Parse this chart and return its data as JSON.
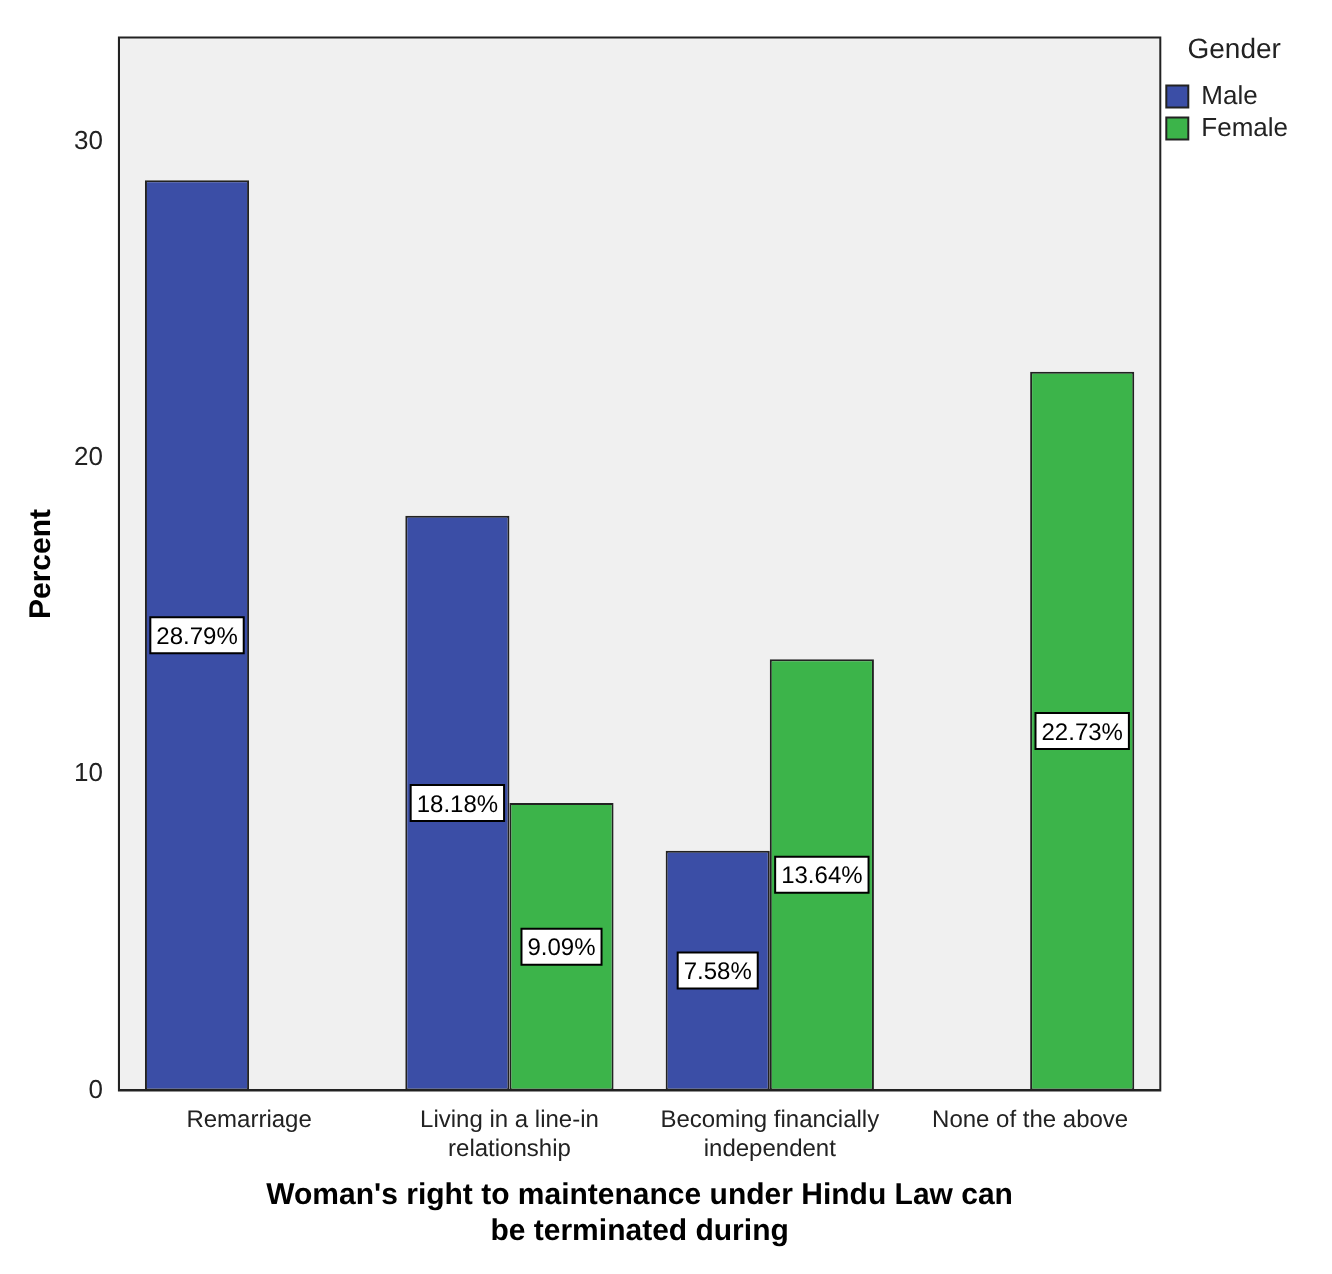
{
  "chart_data": {
    "type": "bar",
    "xlabel": "Woman's right to maintenance under Hindu Law can be terminated during",
    "ylabel": "Percent",
    "legend_title": "Gender",
    "legend": "top right",
    "categories": [
      "Remarriage",
      "Living in a line-in relationship",
      "Becoming financially independent",
      "None of the above"
    ],
    "series": [
      {
        "name": "Male",
        "color": "#3b4ea6",
        "values": [
          28.79,
          18.18,
          7.58,
          null
        ],
        "value_labels": [
          "28.79%",
          "18.18%",
          "7.58%",
          null
        ]
      },
      {
        "name": "Female",
        "color": "#3cb44a",
        "values": [
          null,
          9.09,
          13.64,
          22.73
        ],
        "value_labels": [
          null,
          "9.09%",
          "13.64%",
          "22.73%"
        ]
      }
    ],
    "ylim": [
      0,
      33.3
    ],
    "yticks": [
      0,
      10,
      20,
      30
    ]
  }
}
